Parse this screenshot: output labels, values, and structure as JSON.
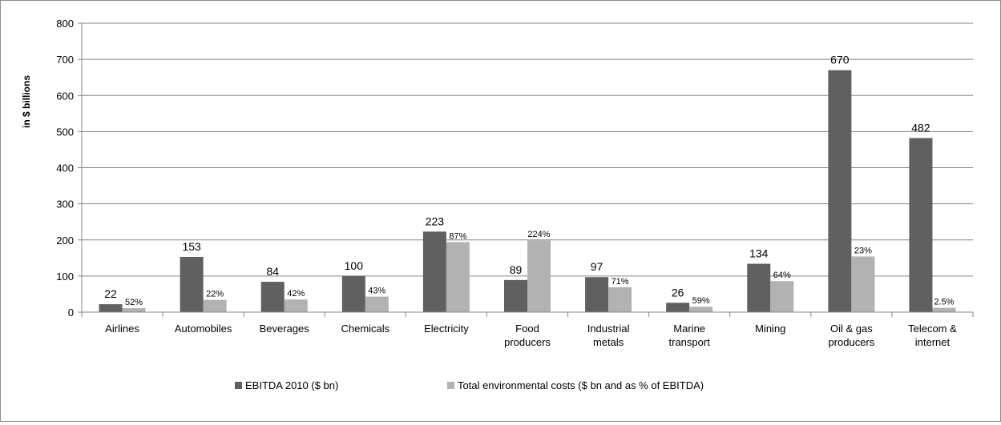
{
  "chart_data": {
    "type": "bar",
    "title": "",
    "xlabel": "",
    "ylabel": "in $ billions",
    "ylim": [
      0,
      800
    ],
    "yticks": [
      0,
      100,
      200,
      300,
      400,
      500,
      600,
      700,
      800
    ],
    "grid": true,
    "legend_position": "bottom",
    "categories": [
      [
        "Airlines"
      ],
      [
        "Automobiles"
      ],
      [
        "Beverages"
      ],
      [
        "Chemicals"
      ],
      [
        "Electricity"
      ],
      [
        "Food",
        "producers"
      ],
      [
        "Industrial",
        "metals"
      ],
      [
        "Marine",
        "transport"
      ],
      [
        "Mining"
      ],
      [
        "Oil & gas",
        "producers"
      ],
      [
        "Telecom &",
        "internet"
      ]
    ],
    "series": [
      {
        "name": "EBITDA 2010 ($ bn)",
        "color": "#606060",
        "values": [
          22,
          153,
          84,
          100,
          223,
          89,
          97,
          26,
          134,
          670,
          482
        ],
        "labels": [
          "22",
          "153",
          "84",
          "100",
          "223",
          "89",
          "97",
          "26",
          "134",
          "670",
          "482"
        ]
      },
      {
        "name": "Total environmental costs ($ bn and as % of EBITDA)",
        "color": "#b2b2b2",
        "values": [
          11,
          34,
          35,
          43,
          194,
          199,
          69,
          15,
          86,
          154,
          12
        ],
        "labels": [
          "52%",
          "22%",
          "42%",
          "43%",
          "87%",
          "224%",
          "71%",
          "59%",
          "64%",
          "23%",
          "2.5%"
        ]
      }
    ]
  }
}
